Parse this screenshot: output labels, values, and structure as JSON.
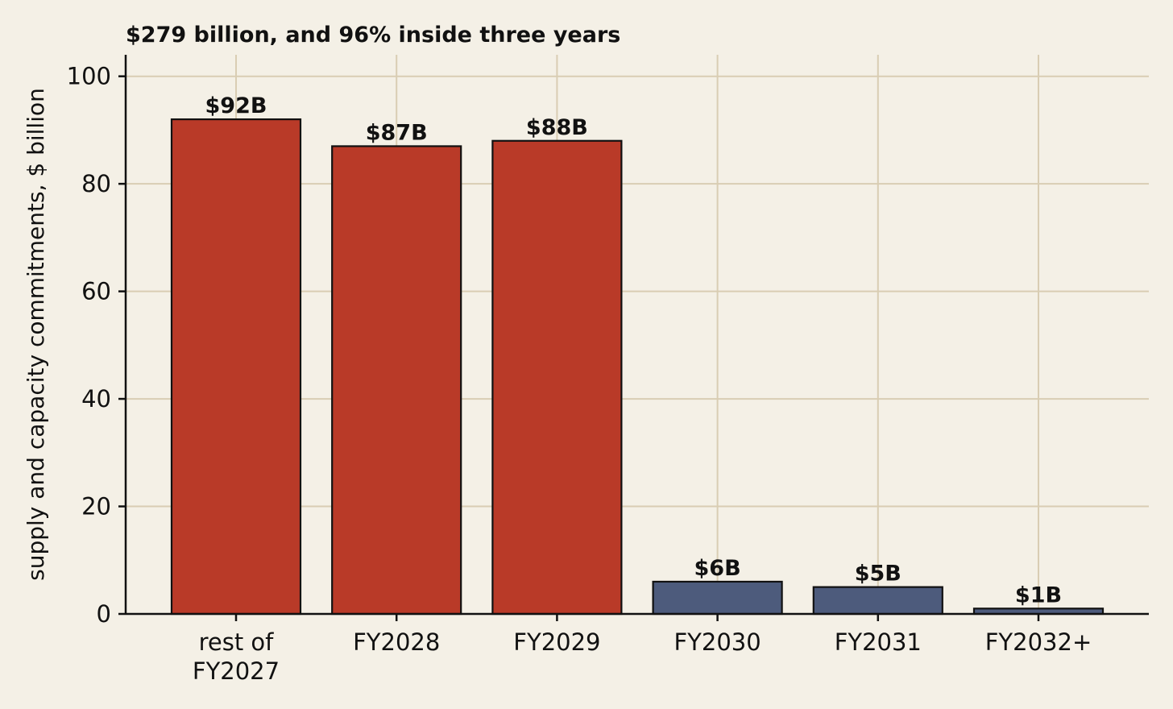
{
  "chart_data": {
    "type": "bar",
    "title": "$279 billion, and 96% inside three years",
    "xlabel": "",
    "ylabel": "supply and capacity commitments, $ billion",
    "categories": [
      [
        "rest of",
        "FY2027"
      ],
      [
        "FY2028"
      ],
      [
        "FY2029"
      ],
      [
        "FY2030"
      ],
      [
        "FY2031"
      ],
      [
        "FY2032+"
      ]
    ],
    "values": [
      92,
      87,
      88,
      6,
      5,
      1
    ],
    "data_labels": [
      "$92B",
      "$87B",
      "$88B",
      "$6B",
      "$5B",
      "$1B"
    ],
    "bar_colors": [
      "#b93a28",
      "#b93a28",
      "#b93a28",
      "#4d5b7c",
      "#4d5b7c",
      "#4d5b7c"
    ],
    "ylim": [
      0,
      104
    ],
    "yticks": [
      0,
      20,
      40,
      60,
      80,
      100
    ],
    "grid": true,
    "background": "#f4f0e6",
    "grid_color": "#d9cdb3"
  }
}
